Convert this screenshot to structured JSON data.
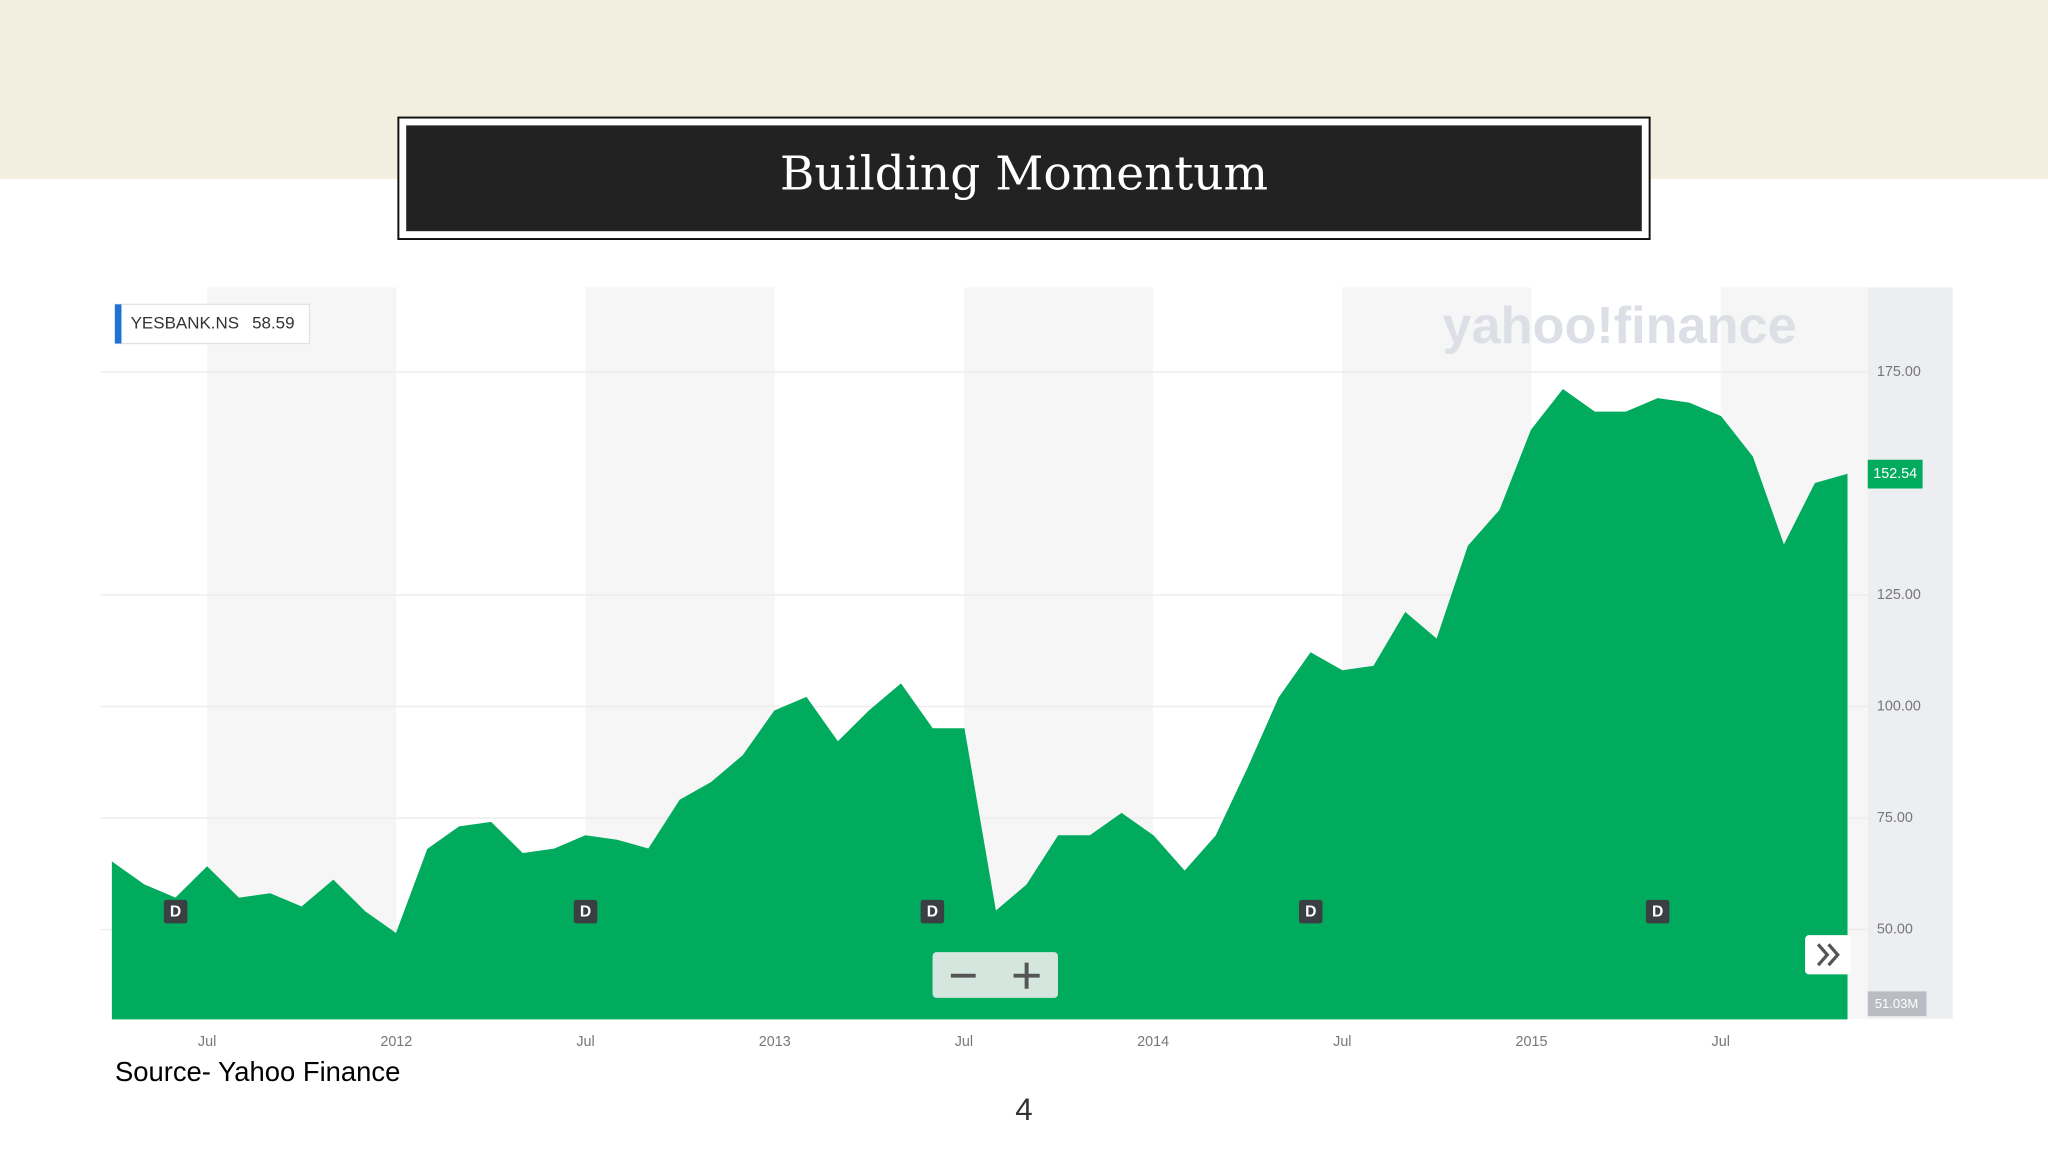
{
  "title": "Building Momentum",
  "source": "Source- Yahoo Finance",
  "page_number": "4",
  "chart_data": {
    "type": "area",
    "watermark": "yahoo!finance",
    "legend_value": "58.59",
    "current_price": "152.54",
    "volume_label": "51.03M",
    "x": [
      "2011-04",
      "2011-05",
      "2011-06",
      "2011-07",
      "2011-08",
      "2011-09",
      "2011-10",
      "2011-11",
      "2011-12",
      "2012-01",
      "2012-02",
      "2012-03",
      "2012-04",
      "2012-05",
      "2012-06",
      "2012-07",
      "2012-08",
      "2012-09",
      "2012-10",
      "2012-11",
      "2012-12",
      "2013-01",
      "2013-02",
      "2013-03",
      "2013-04",
      "2013-05",
      "2013-06",
      "2013-07",
      "2013-08",
      "2013-09",
      "2013-10",
      "2013-11",
      "2013-12",
      "2014-01",
      "2014-02",
      "2014-03",
      "2014-04",
      "2014-05",
      "2014-06",
      "2014-07",
      "2014-08",
      "2014-09",
      "2014-10",
      "2014-11",
      "2014-12",
      "2015-01",
      "2015-02",
      "2015-03",
      "2015-04",
      "2015-05",
      "2015-06",
      "2015-07",
      "2015-08",
      "2015-09",
      "2015-10",
      "2015-11"
    ],
    "series": [
      {
        "name": "YESBANK.NS",
        "color": "#00ab5e",
        "values": [
          65,
          60,
          57,
          64,
          57,
          58,
          55,
          61,
          54,
          49,
          68,
          73,
          74,
          67,
          68,
          71,
          70,
          68,
          79,
          83,
          89,
          99,
          102,
          92,
          99,
          105,
          95,
          95,
          54,
          60,
          71,
          71,
          76,
          71,
          63,
          71,
          86,
          102,
          112,
          108,
          109,
          121,
          115,
          136,
          144,
          162,
          171,
          166,
          166,
          169,
          168,
          165,
          156,
          136,
          150,
          152
        ]
      }
    ],
    "xlim": [
      "2011-03",
      "2015-11"
    ],
    "xticks": [
      {
        "value": "2011-07",
        "label": "Jul"
      },
      {
        "value": "2012-01",
        "label": "2012"
      },
      {
        "value": "2012-07",
        "label": "Jul"
      },
      {
        "value": "2013-01",
        "label": "2013"
      },
      {
        "value": "2013-07",
        "label": "Jul"
      },
      {
        "value": "2014-01",
        "label": "2014"
      },
      {
        "value": "2014-07",
        "label": "Jul"
      },
      {
        "value": "2015-01",
        "label": "2015"
      },
      {
        "value": "2015-07",
        "label": "Jul"
      }
    ],
    "ylim": [
      30,
      194
    ],
    "yticks": [
      {
        "value": 50,
        "label": "50.00"
      },
      {
        "value": 75,
        "label": "75.00"
      },
      {
        "value": 100,
        "label": "100.00"
      },
      {
        "value": 125,
        "label": "125.00"
      },
      {
        "value": 175,
        "label": "175.00"
      }
    ],
    "grid": true,
    "dividends": {
      "label": "D",
      "x": [
        "2011-06",
        "2012-07",
        "2013-06",
        "2014-06",
        "2015-05"
      ]
    }
  }
}
